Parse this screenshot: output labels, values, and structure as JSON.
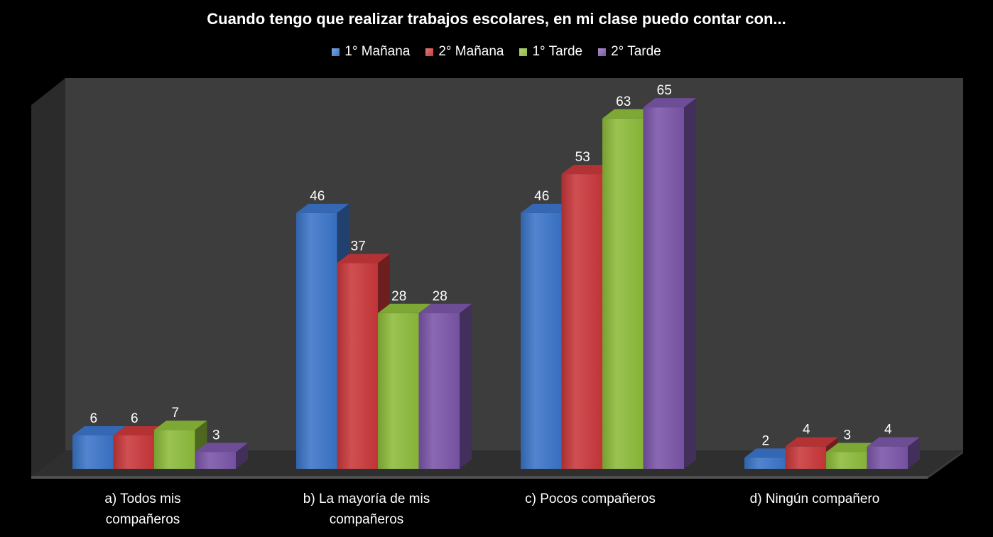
{
  "chart_data": {
    "type": "bar",
    "title": "Cuando tengo que realizar trabajos escolares, en mi clase puedo contar con...",
    "categories": [
      "a) Todos mis compañeros",
      "b) La mayoría de mis compañeros",
      "c) Pocos compañeros",
      "d) Ningún compañero"
    ],
    "series": [
      {
        "name": "1° Mañana",
        "color": "#3A74C8",
        "values": [
          6,
          46,
          46,
          2
        ]
      },
      {
        "name": "2° Mañana",
        "color": "#C9373A",
        "values": [
          6,
          37,
          53,
          4
        ]
      },
      {
        "name": "1° Tarde",
        "color": "#8CBB3A",
        "values": [
          7,
          28,
          63,
          3
        ]
      },
      {
        "name": "2° Tarde",
        "color": "#7A55A8",
        "values": [
          3,
          28,
          65,
          4
        ]
      }
    ],
    "ylim": [
      0,
      70
    ],
    "grid": false,
    "legend_position": "top",
    "three_d": true
  }
}
